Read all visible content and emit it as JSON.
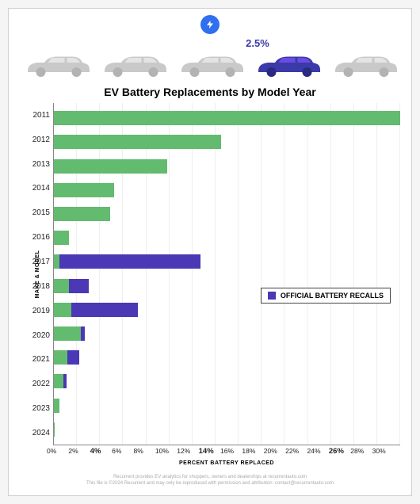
{
  "header": {
    "badge_bg": "#2f6ff0",
    "callout_value": "2.5%",
    "callout_color": "#3a3aa8",
    "car_count": 5,
    "car_highlight_index": 3,
    "car_gray": "#c9c9c9",
    "car_gray_dark": "#b3b3b3",
    "car_hl_body": "#3a3aa8",
    "car_hl_accent": "#6a4de0"
  },
  "chart": {
    "title": "EV Battery Replacements by Model Year",
    "type": "bar-horizontal-stacked",
    "ylabel": "MAKE & MODEL",
    "xlabel": "PERCENT BATTERY REPLACED",
    "xlim": [
      0,
      30
    ],
    "xtick_step": 2,
    "xtick_bold": [
      4,
      14,
      26
    ],
    "colors": {
      "green": "#62bb6e",
      "purple": "#4a38b5"
    },
    "legend_label": "OFFICIAL BATTERY RECALLS",
    "background_color": "#ffffff",
    "grid_color": "#eeeeee",
    "years": [
      {
        "year": "2011",
        "green": 30.0,
        "purple": 0.0
      },
      {
        "year": "2012",
        "green": 14.5,
        "purple": 0.0
      },
      {
        "year": "2013",
        "green": 9.8,
        "purple": 0.0
      },
      {
        "year": "2014",
        "green": 5.2,
        "purple": 0.0
      },
      {
        "year": "2015",
        "green": 4.9,
        "purple": 0.0
      },
      {
        "year": "2016",
        "green": 1.3,
        "purple": 0.0
      },
      {
        "year": "2017",
        "green": 0.5,
        "purple": 12.2
      },
      {
        "year": "2018",
        "green": 1.3,
        "purple": 1.7
      },
      {
        "year": "2019",
        "green": 1.5,
        "purple": 5.8
      },
      {
        "year": "2020",
        "green": 2.3,
        "purple": 0.4
      },
      {
        "year": "2021",
        "green": 1.2,
        "purple": 1.0
      },
      {
        "year": "2022",
        "green": 0.8,
        "purple": 0.3
      },
      {
        "year": "2023",
        "green": 0.5,
        "purple": 0.0
      },
      {
        "year": "2024",
        "green": 0.1,
        "purple": 0.0
      }
    ]
  },
  "footer": {
    "line1": "Recurrent provides EV analytics for shoppers, owners and dealerships at recurrentauto.com",
    "line2": "This file is ©2024 Recurrent and may only be reproduced with permission and attribution: contact@recurrentauto.com"
  }
}
